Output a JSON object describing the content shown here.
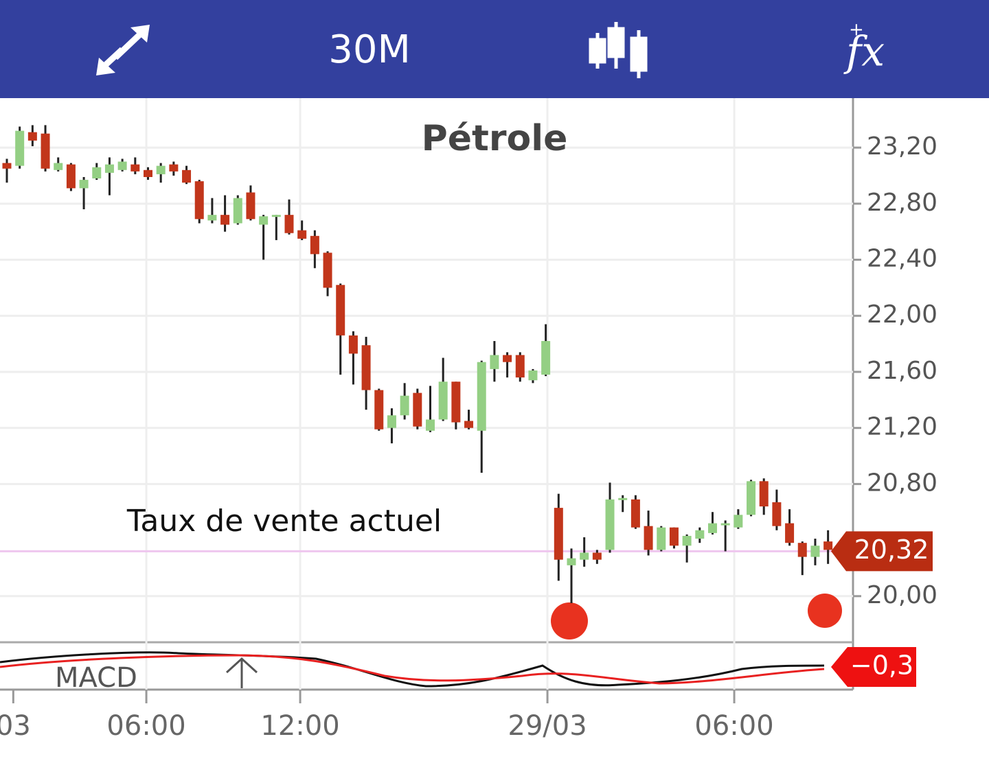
{
  "toolbar": {
    "timeframe": "30M",
    "indicator_plus": "+",
    "indicator_icon": "fx"
  },
  "chart_data": {
    "type": "candlestick",
    "title": "Pétrole",
    "annotation": "Taux de vente actuel",
    "open": [
      23.09,
      23.07,
      23.31,
      23.3,
      23.04,
      23.08,
      22.91,
      22.98,
      23.02,
      23.04,
      23.08,
      23.04,
      23.01,
      23.08,
      23.04,
      22.96,
      22.68,
      22.72,
      22.66,
      22.88,
      22.65,
      22.71,
      22.72,
      22.61,
      22.57,
      22.45,
      22.22,
      21.86,
      21.79,
      21.47,
      21.2,
      21.29,
      21.45,
      21.18,
      21.26,
      21.53,
      21.25,
      21.18,
      21.62,
      21.72,
      21.72,
      21.54,
      21.58,
      20.63,
      20.22,
      20.26,
      20.31,
      20.33,
      20.69,
      20.69,
      20.5,
      20.33,
      20.49,
      20.36,
      20.41,
      20.45,
      20.51,
      20.49,
      20.58,
      20.82,
      20.67,
      20.52,
      20.38,
      20.28,
      20.39
    ],
    "high": [
      23.12,
      23.35,
      23.36,
      23.36,
      23.13,
      23.09,
      22.99,
      23.09,
      23.13,
      23.12,
      23.13,
      23.06,
      23.09,
      23.1,
      23.07,
      22.97,
      22.84,
      22.86,
      22.86,
      22.93,
      22.72,
      22.72,
      22.83,
      22.68,
      22.61,
      22.46,
      22.23,
      21.89,
      21.85,
      21.48,
      21.34,
      21.52,
      21.48,
      21.5,
      21.7,
      21.53,
      21.33,
      21.68,
      21.82,
      21.74,
      21.74,
      21.62,
      21.94,
      20.73,
      20.34,
      20.42,
      20.33,
      20.81,
      20.72,
      20.72,
      20.61,
      20.5,
      20.49,
      20.44,
      20.49,
      20.6,
      20.54,
      20.62,
      20.83,
      20.84,
      20.76,
      20.62,
      20.39,
      20.41,
      20.47
    ],
    "low": [
      22.95,
      23.05,
      23.21,
      23.03,
      23.03,
      22.89,
      22.76,
      22.97,
      22.86,
      23.03,
      23.01,
      22.97,
      22.95,
      23.0,
      22.94,
      22.66,
      22.66,
      22.6,
      22.65,
      22.68,
      22.4,
      22.54,
      22.58,
      22.54,
      22.34,
      22.14,
      21.58,
      21.51,
      21.33,
      21.18,
      21.09,
      21.26,
      21.19,
      21.17,
      21.25,
      21.19,
      21.19,
      20.88,
      21.53,
      21.56,
      21.53,
      21.52,
      21.57,
      20.11,
      19.95,
      20.21,
      20.23,
      20.31,
      20.6,
      20.48,
      20.29,
      20.32,
      20.34,
      20.24,
      20.38,
      20.44,
      20.32,
      20.48,
      20.57,
      20.58,
      20.47,
      20.36,
      20.15,
      20.22,
      20.23
    ],
    "close": [
      23.05,
      23.32,
      23.25,
      23.05,
      23.09,
      22.91,
      22.97,
      23.06,
      23.08,
      23.1,
      23.03,
      22.99,
      23.07,
      23.03,
      22.95,
      22.69,
      22.72,
      22.65,
      22.84,
      22.69,
      22.71,
      22.72,
      22.59,
      22.55,
      22.44,
      22.2,
      21.86,
      21.73,
      21.47,
      21.19,
      21.29,
      21.43,
      21.21,
      21.26,
      21.53,
      21.24,
      21.2,
      21.67,
      21.72,
      21.67,
      21.56,
      21.61,
      21.82,
      20.26,
      20.27,
      20.31,
      20.26,
      20.69,
      20.7,
      20.49,
      20.33,
      20.49,
      20.36,
      20.43,
      20.47,
      20.52,
      20.52,
      20.58,
      20.82,
      20.64,
      20.5,
      20.38,
      20.28,
      20.36,
      20.33
    ],
    "up_color": "#94cf84",
    "down_color": "#c2361b",
    "ylim": [
      19.671,
      23.553
    ],
    "yticks": [
      {
        "value": 23.2,
        "label": "23,20"
      },
      {
        "value": 22.8,
        "label": "22,80"
      },
      {
        "value": 22.4,
        "label": "22,40"
      },
      {
        "value": 22.0,
        "label": "22,00"
      },
      {
        "value": 21.6,
        "label": "21,60"
      },
      {
        "value": 21.2,
        "label": "21,20"
      },
      {
        "value": 20.8,
        "label": "20,80"
      },
      {
        "value": 20.0,
        "label": "20,00"
      }
    ],
    "xlim": [
      -0.535,
      65.84
    ],
    "xticks": [
      {
        "value": 0.5,
        "label": "03"
      },
      {
        "value": 10.87,
        "label": "06:00"
      },
      {
        "value": 22.86,
        "label": "12:00"
      },
      {
        "value": 42.13,
        "label": "29/03"
      },
      {
        "value": 56.69,
        "label": "06:00"
      }
    ],
    "current_price": {
      "value": 20.32,
      "label": "20,32"
    },
    "macd": {
      "label": "MACD",
      "value": -0.3,
      "value_label": "−0,3"
    }
  }
}
